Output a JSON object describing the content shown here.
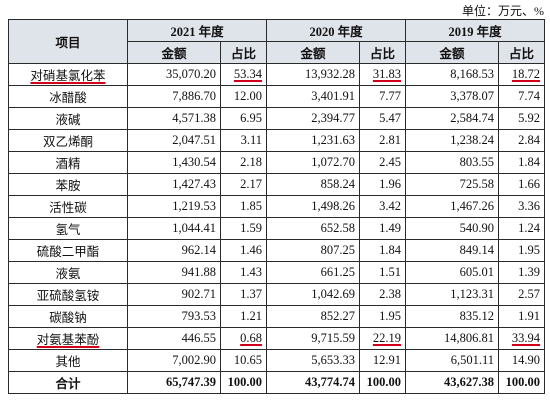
{
  "unit": "单位：万元、%",
  "header": {
    "item": "项目",
    "years": [
      "2021 年度",
      "2020 年度",
      "2019 年度"
    ],
    "amount": "金额",
    "ratio": "占比"
  },
  "rows": [
    {
      "name": "对硝基氯化苯",
      "v": [
        "35,070.20",
        "53.34",
        "13,932.28",
        "31.83",
        "8,168.53",
        "18.72"
      ],
      "marked": true
    },
    {
      "name": "冰醋酸",
      "v": [
        "7,886.70",
        "12.00",
        "3,401.91",
        "7.77",
        "3,378.07",
        "7.74"
      ]
    },
    {
      "name": "液碱",
      "v": [
        "4,571.38",
        "6.95",
        "2,394.77",
        "5.47",
        "2,584.74",
        "5.92"
      ]
    },
    {
      "name": "双乙烯酮",
      "v": [
        "2,047.51",
        "3.11",
        "1,231.63",
        "2.81",
        "1,238.24",
        "2.84"
      ]
    },
    {
      "name": "酒精",
      "v": [
        "1,430.54",
        "2.18",
        "1,072.70",
        "2.45",
        "803.55",
        "1.84"
      ]
    },
    {
      "name": "苯胺",
      "v": [
        "1,427.43",
        "2.17",
        "858.24",
        "1.96",
        "725.58",
        "1.66"
      ]
    },
    {
      "name": "活性碳",
      "v": [
        "1,219.53",
        "1.85",
        "1,498.26",
        "3.42",
        "1,467.26",
        "3.36"
      ]
    },
    {
      "name": "氢气",
      "v": [
        "1,044.41",
        "1.59",
        "652.58",
        "1.49",
        "540.90",
        "1.24"
      ]
    },
    {
      "name": "硫酸二甲酯",
      "v": [
        "962.14",
        "1.46",
        "807.25",
        "1.84",
        "849.14",
        "1.95"
      ]
    },
    {
      "name": "液氨",
      "v": [
        "941.88",
        "1.43",
        "661.25",
        "1.51",
        "605.01",
        "1.39"
      ]
    },
    {
      "name": "亚硫酸氢铵",
      "v": [
        "902.71",
        "1.37",
        "1,042.69",
        "2.38",
        "1,123.31",
        "2.57"
      ]
    },
    {
      "name": "碳酸钠",
      "v": [
        "793.53",
        "1.21",
        "852.27",
        "1.95",
        "835.12",
        "1.91"
      ]
    },
    {
      "name": "对氨基苯酚",
      "v": [
        "446.55",
        "0.68",
        "9,715.59",
        "22.19",
        "14,806.81",
        "33.94"
      ],
      "marked": true
    },
    {
      "name": "其他",
      "v": [
        "7,002.90",
        "10.65",
        "5,653.33",
        "12.91",
        "6,501.11",
        "14.90"
      ]
    }
  ],
  "total": {
    "name": "合计",
    "v": [
      "65,747.39",
      "100.00",
      "43,774.74",
      "100.00",
      "43,627.38",
      "100.00"
    ]
  },
  "colors": {
    "header_bg": "#dfe3ea",
    "mark": "#d0021b"
  }
}
